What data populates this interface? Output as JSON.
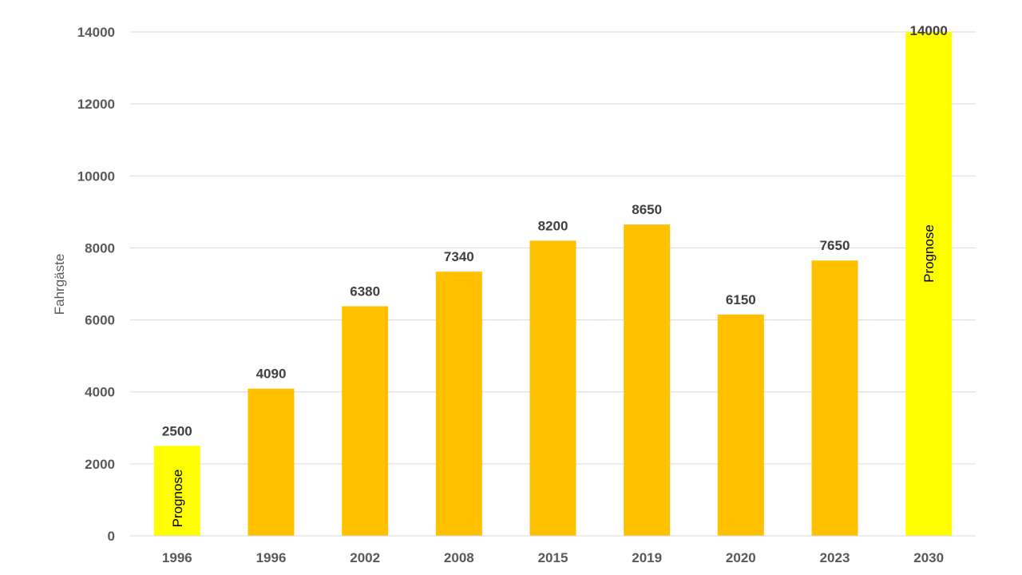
{
  "chart_data": {
    "type": "bar",
    "categories": [
      "1996",
      "1996",
      "2002",
      "2008",
      "2015",
      "2019",
      "2020",
      "2023",
      "2030"
    ],
    "values": [
      2500,
      4090,
      6380,
      7340,
      8200,
      8650,
      6150,
      7650,
      14000
    ],
    "data_labels": [
      "2500",
      "4090",
      "6380",
      "7340",
      "8200",
      "8650",
      "6150",
      "7650",
      "14000"
    ],
    "bar_colors": [
      "#ffff00",
      "#ffc000",
      "#ffc000",
      "#ffc000",
      "#ffc000",
      "#ffc000",
      "#ffc000",
      "#ffc000",
      "#ffff00"
    ],
    "annotations": [
      "Prognose",
      "",
      "",
      "",
      "",
      "",
      "",
      "",
      "Prognose"
    ],
    "title": "",
    "xlabel": "",
    "ylabel": "Fahrgäste",
    "ylim": [
      0,
      14000
    ],
    "yticks": [
      0,
      2000,
      4000,
      6000,
      8000,
      10000,
      12000,
      14000
    ],
    "ytick_labels": [
      "0",
      "2000",
      "4000",
      "6000",
      "8000",
      "10000",
      "12000",
      "14000"
    ],
    "grid": true,
    "legend": "none"
  }
}
